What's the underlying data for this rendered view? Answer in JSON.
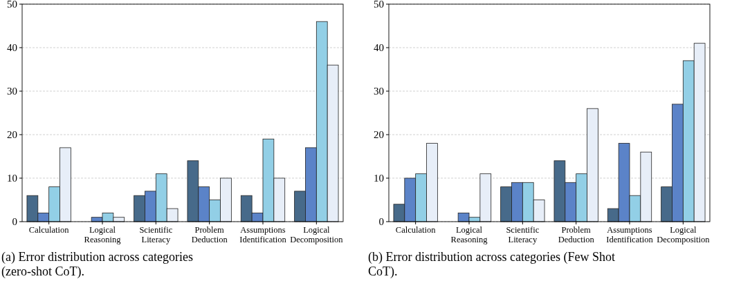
{
  "chart_data": [
    {
      "type": "bar",
      "categories": [
        "Calculation",
        "Logical Reasoning",
        "Scientific Literacy",
        "Problem Deduction",
        "Assumptions Identification",
        "Logical Decomposition"
      ],
      "series": [
        {
          "color": "#476a8a",
          "values": [
            6,
            0,
            6,
            14,
            6,
            7
          ]
        },
        {
          "color": "#5b83c8",
          "values": [
            2,
            1,
            7,
            8,
            2,
            17
          ]
        },
        {
          "color": "#92cfe6",
          "values": [
            8,
            2,
            11,
            5,
            19,
            46
          ]
        },
        {
          "color": "#e7eef8",
          "values": [
            17,
            1,
            3,
            10,
            10,
            36
          ]
        }
      ],
      "ylim": [
        0,
        50
      ],
      "yticks": [
        0,
        10,
        20,
        30,
        40,
        50
      ],
      "grid": "y",
      "annotations": [
        "(a) Error distribution across categories (zero-shot CoT)."
      ]
    },
    {
      "type": "bar",
      "categories": [
        "Calculation",
        "Logical Reasoning",
        "Scientific Literacy",
        "Problem Deduction",
        "Assumptions Identification",
        "Logical Decomposition"
      ],
      "series": [
        {
          "color": "#476a8a",
          "values": [
            4,
            0,
            8,
            14,
            3,
            8
          ]
        },
        {
          "color": "#5b83c8",
          "values": [
            10,
            2,
            9,
            9,
            18,
            27
          ]
        },
        {
          "color": "#92cfe6",
          "values": [
            11,
            1,
            9,
            11,
            6,
            37
          ]
        },
        {
          "color": "#e7eef8",
          "values": [
            18,
            11,
            5,
            26,
            16,
            41
          ]
        }
      ],
      "ylim": [
        0,
        50
      ],
      "yticks": [
        0,
        10,
        20,
        30,
        40,
        50
      ],
      "grid": "y",
      "annotations": [
        "(b) Error distribution across categories (Few Shot CoT)."
      ]
    }
  ]
}
